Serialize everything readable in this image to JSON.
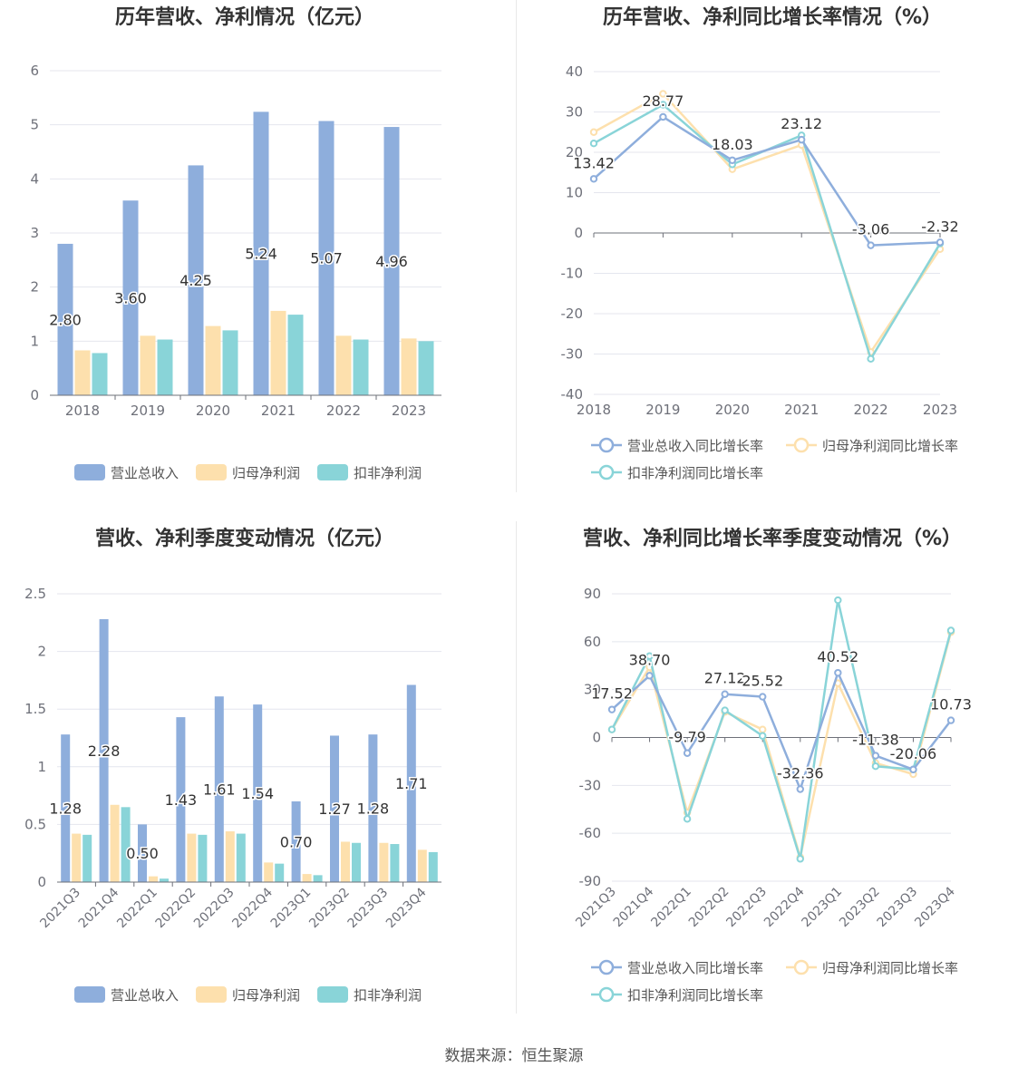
{
  "colors": {
    "revenue": "#8eaedc",
    "parent_profit": "#fde0ad",
    "deducted_profit": "#89d4d8",
    "grid": "#e4e6ee",
    "axis": "#6e7079",
    "title": "#333333"
  },
  "source_text": "数据来源：恒生聚源",
  "chart_data": [
    {
      "id": "annual_amount",
      "type": "bar",
      "title": "历年营收、净利情况（亿元）",
      "categories": [
        "2018",
        "2019",
        "2020",
        "2021",
        "2022",
        "2023"
      ],
      "ylim": [
        0,
        6
      ],
      "yticks": [
        "0",
        "1",
        "2",
        "3",
        "4",
        "5",
        "6"
      ],
      "series": [
        {
          "name": "营业总收入",
          "values": [
            2.8,
            3.6,
            4.25,
            5.24,
            5.07,
            4.96
          ],
          "labels": [
            "2.80",
            "3.60",
            "4.25",
            "5.24",
            "5.07",
            "4.96"
          ]
        },
        {
          "name": "归母净利润",
          "values": [
            0.83,
            1.1,
            1.28,
            1.56,
            1.1,
            1.05
          ]
        },
        {
          "name": "扣非净利润",
          "values": [
            0.78,
            1.03,
            1.2,
            1.49,
            1.03,
            1.0
          ]
        }
      ],
      "legend": [
        "营业总收入",
        "归母净利润",
        "扣非净利润"
      ]
    },
    {
      "id": "annual_growth",
      "type": "line",
      "title": "历年营收、净利同比增长率情况（%）",
      "categories": [
        "2018",
        "2019",
        "2020",
        "2021",
        "2022",
        "2023"
      ],
      "ylim": [
        -40,
        40
      ],
      "yticks": [
        "-40",
        "-30",
        "-20",
        "-10",
        "0",
        "10",
        "20",
        "30",
        "40"
      ],
      "series": [
        {
          "name": "营业总收入同比增长率",
          "values": [
            13.42,
            28.77,
            18.03,
            23.12,
            -3.06,
            -2.32
          ],
          "labels": [
            "13.42",
            "28.77",
            "18.03",
            "23.12",
            "-3.06",
            "-2.32"
          ]
        },
        {
          "name": "归母净利润同比增长率",
          "values": [
            25.0,
            34.5,
            15.8,
            21.8,
            -29.5,
            -4.0
          ]
        },
        {
          "name": "扣非净利润同比增长率",
          "values": [
            22.2,
            31.8,
            17.0,
            24.2,
            -31.2,
            -2.6
          ]
        }
      ],
      "legend": [
        "营业总收入同比增长率",
        "归母净利润同比增长率",
        "扣非净利润同比增长率"
      ]
    },
    {
      "id": "quarterly_amount",
      "type": "bar",
      "title": "营收、净利季度变动情况（亿元）",
      "categories": [
        "2021Q3",
        "2021Q4",
        "2022Q1",
        "2022Q2",
        "2022Q3",
        "2022Q4",
        "2023Q1",
        "2023Q2",
        "2023Q3",
        "2023Q4"
      ],
      "ylim": [
        0,
        2.5
      ],
      "yticks": [
        "0",
        "0.5",
        "1",
        "1.5",
        "2",
        "2.5"
      ],
      "series": [
        {
          "name": "营业总收入",
          "values": [
            1.28,
            2.28,
            0.5,
            1.43,
            1.61,
            1.54,
            0.7,
            1.27,
            1.28,
            1.71
          ],
          "labels": [
            "1.28",
            "2.28",
            "0.50",
            "1.43",
            "1.61",
            "1.54",
            "0.70",
            "1.27",
            "1.28",
            "1.71"
          ]
        },
        {
          "name": "归母净利润",
          "values": [
            0.42,
            0.67,
            0.05,
            0.42,
            0.44,
            0.17,
            0.07,
            0.35,
            0.34,
            0.28
          ]
        },
        {
          "name": "扣非净利润",
          "values": [
            0.41,
            0.65,
            0.03,
            0.41,
            0.42,
            0.16,
            0.06,
            0.34,
            0.33,
            0.26
          ]
        }
      ],
      "legend": [
        "营业总收入",
        "归母净利润",
        "扣非净利润"
      ]
    },
    {
      "id": "quarterly_growth",
      "type": "line",
      "title": "营收、净利同比增长率季度变动情况（%）",
      "categories": [
        "2021Q3",
        "2021Q4",
        "2022Q1",
        "2022Q2",
        "2022Q3",
        "2022Q4",
        "2023Q1",
        "2023Q2",
        "2023Q3",
        "2023Q4"
      ],
      "ylim": [
        -90,
        90
      ],
      "yticks": [
        "-90",
        "-60",
        "-30",
        "0",
        "30",
        "60",
        "90"
      ],
      "series": [
        {
          "name": "营业总收入同比增长率",
          "values": [
            17.52,
            38.7,
            -9.79,
            27.12,
            25.52,
            -32.36,
            40.52,
            -11.38,
            -20.06,
            10.73
          ],
          "labels": [
            "17.52",
            "38.70",
            "-9.79",
            "27.12",
            "25.52",
            "-32.36",
            "40.52",
            "-11.38",
            "-20.06",
            "10.73"
          ]
        },
        {
          "name": "归母净利润同比增长率",
          "values": [
            5.0,
            44.0,
            -47.0,
            16.0,
            5.0,
            -75.0,
            34.0,
            -16.0,
            -23.0,
            66.0
          ]
        },
        {
          "name": "扣非净利润同比增长率",
          "values": [
            5.0,
            51.0,
            -51.0,
            17.0,
            1.0,
            -76.0,
            86.0,
            -18.0,
            -20.0,
            67.0
          ]
        }
      ],
      "legend": [
        "营业总收入同比增长率",
        "归母净利润同比增长率",
        "扣非净利润同比增长率"
      ]
    }
  ]
}
